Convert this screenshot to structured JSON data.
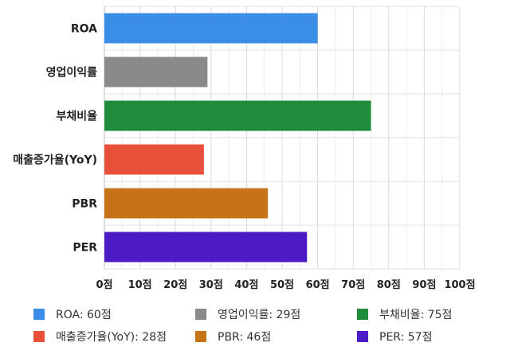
{
  "chart_data": {
    "type": "bar",
    "orientation": "horizontal",
    "title": "",
    "xlabel": "",
    "ylabel": "",
    "xlim": [
      0,
      100
    ],
    "x_tick_values": [
      0,
      10,
      20,
      30,
      40,
      50,
      60,
      70,
      80,
      90,
      100
    ],
    "x_tick_labels": [
      "0점",
      "10점",
      "20점",
      "30점",
      "40점",
      "50점",
      "60점",
      "70점",
      "80점",
      "90점",
      "100점"
    ],
    "categories": [
      "ROA",
      "영업이익률",
      "부채비율",
      "매출증가율(YoY)",
      "PBR",
      "PER"
    ],
    "values": [
      60,
      29,
      75,
      28,
      46,
      57
    ],
    "colors": [
      "#3a8ee6",
      "#8a8a8a",
      "#1e8c3a",
      "#e8503a",
      "#c87318",
      "#4b1bc4"
    ],
    "grid": true,
    "legend_position": "bottom",
    "legend_labels": [
      "ROA: 60점",
      "영업이익률: 29점",
      "부채비율: 75점",
      "매출증가율(YoY): 28점",
      "PBR: 46점",
      "PER: 57점"
    ]
  }
}
